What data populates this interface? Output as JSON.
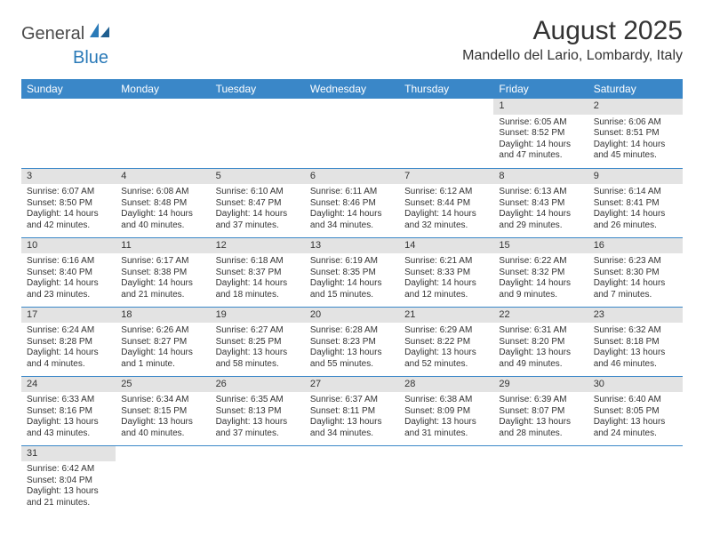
{
  "logo": {
    "part1": "General",
    "part2": "Blue"
  },
  "title": "August 2025",
  "location": "Mandello del Lario, Lombardy, Italy",
  "colors": {
    "header_bg": "#3a87c8",
    "header_text": "#ffffff",
    "daynum_bg": "#e3e3e3",
    "row_border": "#3a87c8",
    "body_text": "#333333",
    "logo_blue": "#2a7ab8",
    "logo_gray": "#4a4a4a",
    "page_bg": "#ffffff"
  },
  "typography": {
    "title_fontsize": 30,
    "location_fontsize": 16,
    "dayheader_fontsize": 12,
    "daynum_fontsize": 11,
    "body_fontsize": 10
  },
  "type": "calendar-table",
  "columns": [
    "Sunday",
    "Monday",
    "Tuesday",
    "Wednesday",
    "Thursday",
    "Friday",
    "Saturday"
  ],
  "weeks": [
    [
      {
        "n": "",
        "sr": "",
        "ss": "",
        "dl": ""
      },
      {
        "n": "",
        "sr": "",
        "ss": "",
        "dl": ""
      },
      {
        "n": "",
        "sr": "",
        "ss": "",
        "dl": ""
      },
      {
        "n": "",
        "sr": "",
        "ss": "",
        "dl": ""
      },
      {
        "n": "",
        "sr": "",
        "ss": "",
        "dl": ""
      },
      {
        "n": "1",
        "sr": "Sunrise: 6:05 AM",
        "ss": "Sunset: 8:52 PM",
        "dl": "Daylight: 14 hours and 47 minutes."
      },
      {
        "n": "2",
        "sr": "Sunrise: 6:06 AM",
        "ss": "Sunset: 8:51 PM",
        "dl": "Daylight: 14 hours and 45 minutes."
      }
    ],
    [
      {
        "n": "3",
        "sr": "Sunrise: 6:07 AM",
        "ss": "Sunset: 8:50 PM",
        "dl": "Daylight: 14 hours and 42 minutes."
      },
      {
        "n": "4",
        "sr": "Sunrise: 6:08 AM",
        "ss": "Sunset: 8:48 PM",
        "dl": "Daylight: 14 hours and 40 minutes."
      },
      {
        "n": "5",
        "sr": "Sunrise: 6:10 AM",
        "ss": "Sunset: 8:47 PM",
        "dl": "Daylight: 14 hours and 37 minutes."
      },
      {
        "n": "6",
        "sr": "Sunrise: 6:11 AM",
        "ss": "Sunset: 8:46 PM",
        "dl": "Daylight: 14 hours and 34 minutes."
      },
      {
        "n": "7",
        "sr": "Sunrise: 6:12 AM",
        "ss": "Sunset: 8:44 PM",
        "dl": "Daylight: 14 hours and 32 minutes."
      },
      {
        "n": "8",
        "sr": "Sunrise: 6:13 AM",
        "ss": "Sunset: 8:43 PM",
        "dl": "Daylight: 14 hours and 29 minutes."
      },
      {
        "n": "9",
        "sr": "Sunrise: 6:14 AM",
        "ss": "Sunset: 8:41 PM",
        "dl": "Daylight: 14 hours and 26 minutes."
      }
    ],
    [
      {
        "n": "10",
        "sr": "Sunrise: 6:16 AM",
        "ss": "Sunset: 8:40 PM",
        "dl": "Daylight: 14 hours and 23 minutes."
      },
      {
        "n": "11",
        "sr": "Sunrise: 6:17 AM",
        "ss": "Sunset: 8:38 PM",
        "dl": "Daylight: 14 hours and 21 minutes."
      },
      {
        "n": "12",
        "sr": "Sunrise: 6:18 AM",
        "ss": "Sunset: 8:37 PM",
        "dl": "Daylight: 14 hours and 18 minutes."
      },
      {
        "n": "13",
        "sr": "Sunrise: 6:19 AM",
        "ss": "Sunset: 8:35 PM",
        "dl": "Daylight: 14 hours and 15 minutes."
      },
      {
        "n": "14",
        "sr": "Sunrise: 6:21 AM",
        "ss": "Sunset: 8:33 PM",
        "dl": "Daylight: 14 hours and 12 minutes."
      },
      {
        "n": "15",
        "sr": "Sunrise: 6:22 AM",
        "ss": "Sunset: 8:32 PM",
        "dl": "Daylight: 14 hours and 9 minutes."
      },
      {
        "n": "16",
        "sr": "Sunrise: 6:23 AM",
        "ss": "Sunset: 8:30 PM",
        "dl": "Daylight: 14 hours and 7 minutes."
      }
    ],
    [
      {
        "n": "17",
        "sr": "Sunrise: 6:24 AM",
        "ss": "Sunset: 8:28 PM",
        "dl": "Daylight: 14 hours and 4 minutes."
      },
      {
        "n": "18",
        "sr": "Sunrise: 6:26 AM",
        "ss": "Sunset: 8:27 PM",
        "dl": "Daylight: 14 hours and 1 minute."
      },
      {
        "n": "19",
        "sr": "Sunrise: 6:27 AM",
        "ss": "Sunset: 8:25 PM",
        "dl": "Daylight: 13 hours and 58 minutes."
      },
      {
        "n": "20",
        "sr": "Sunrise: 6:28 AM",
        "ss": "Sunset: 8:23 PM",
        "dl": "Daylight: 13 hours and 55 minutes."
      },
      {
        "n": "21",
        "sr": "Sunrise: 6:29 AM",
        "ss": "Sunset: 8:22 PM",
        "dl": "Daylight: 13 hours and 52 minutes."
      },
      {
        "n": "22",
        "sr": "Sunrise: 6:31 AM",
        "ss": "Sunset: 8:20 PM",
        "dl": "Daylight: 13 hours and 49 minutes."
      },
      {
        "n": "23",
        "sr": "Sunrise: 6:32 AM",
        "ss": "Sunset: 8:18 PM",
        "dl": "Daylight: 13 hours and 46 minutes."
      }
    ],
    [
      {
        "n": "24",
        "sr": "Sunrise: 6:33 AM",
        "ss": "Sunset: 8:16 PM",
        "dl": "Daylight: 13 hours and 43 minutes."
      },
      {
        "n": "25",
        "sr": "Sunrise: 6:34 AM",
        "ss": "Sunset: 8:15 PM",
        "dl": "Daylight: 13 hours and 40 minutes."
      },
      {
        "n": "26",
        "sr": "Sunrise: 6:35 AM",
        "ss": "Sunset: 8:13 PM",
        "dl": "Daylight: 13 hours and 37 minutes."
      },
      {
        "n": "27",
        "sr": "Sunrise: 6:37 AM",
        "ss": "Sunset: 8:11 PM",
        "dl": "Daylight: 13 hours and 34 minutes."
      },
      {
        "n": "28",
        "sr": "Sunrise: 6:38 AM",
        "ss": "Sunset: 8:09 PM",
        "dl": "Daylight: 13 hours and 31 minutes."
      },
      {
        "n": "29",
        "sr": "Sunrise: 6:39 AM",
        "ss": "Sunset: 8:07 PM",
        "dl": "Daylight: 13 hours and 28 minutes."
      },
      {
        "n": "30",
        "sr": "Sunrise: 6:40 AM",
        "ss": "Sunset: 8:05 PM",
        "dl": "Daylight: 13 hours and 24 minutes."
      }
    ],
    [
      {
        "n": "31",
        "sr": "Sunrise: 6:42 AM",
        "ss": "Sunset: 8:04 PM",
        "dl": "Daylight: 13 hours and 21 minutes."
      },
      {
        "n": "",
        "sr": "",
        "ss": "",
        "dl": ""
      },
      {
        "n": "",
        "sr": "",
        "ss": "",
        "dl": ""
      },
      {
        "n": "",
        "sr": "",
        "ss": "",
        "dl": ""
      },
      {
        "n": "",
        "sr": "",
        "ss": "",
        "dl": ""
      },
      {
        "n": "",
        "sr": "",
        "ss": "",
        "dl": ""
      },
      {
        "n": "",
        "sr": "",
        "ss": "",
        "dl": ""
      }
    ]
  ]
}
